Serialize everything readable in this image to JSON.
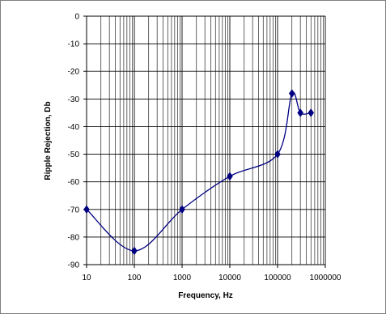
{
  "chart_data": {
    "type": "line",
    "title": "",
    "xlabel": "Frequency, Hz",
    "ylabel": "Ripple Rejection, Db",
    "x_scale": "log",
    "xlim": [
      10,
      1000000
    ],
    "ylim": [
      -90,
      0
    ],
    "x_ticks": [
      "10",
      "100",
      "1000",
      "10000",
      "100000",
      "1000000"
    ],
    "y_ticks": [
      "0",
      "-10",
      "-20",
      "-30",
      "-40",
      "-50",
      "-60",
      "-70",
      "-80",
      "-90"
    ],
    "grid": true,
    "smooth": true,
    "line_color": "#000080",
    "marker_color": "#000080",
    "series": [
      {
        "x": [
          10,
          100,
          1000,
          10000,
          100000,
          200000,
          300000,
          500000
        ],
        "y": [
          -70,
          -85,
          -70,
          -58,
          -50,
          -28,
          -35,
          -35
        ]
      }
    ]
  }
}
